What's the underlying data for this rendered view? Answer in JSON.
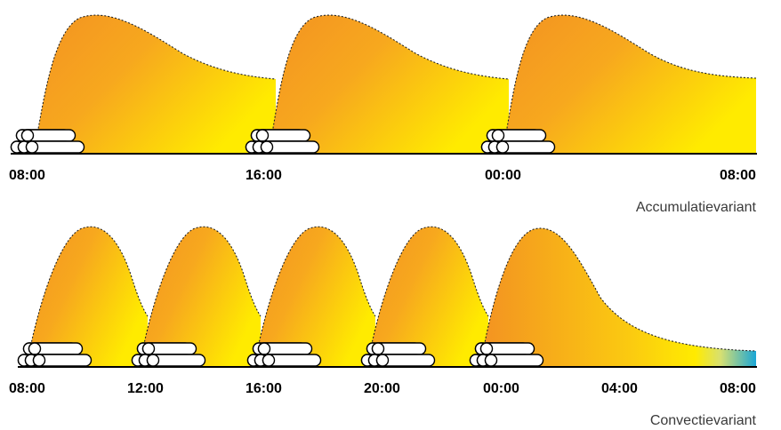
{
  "panels": [
    {
      "id": "accumulatie",
      "caption": "Accumulatievariant",
      "tick_labels": [
        "08:00",
        "16:00",
        "00:00",
        "08:00"
      ],
      "burns": 3,
      "colors": {
        "warm": "#F39222",
        "mid": "#F7B21C",
        "light": "#FFEB00"
      }
    },
    {
      "id": "convectie",
      "caption": "Convectievariant",
      "tick_labels": [
        "08:00",
        "12:00",
        "16:00",
        "20:00",
        "00:00",
        "04:00",
        "08:00"
      ],
      "burns": 5,
      "colors": {
        "warm": "#F39222",
        "mid": "#F7B21C",
        "light": "#FFEB00",
        "cool": "#1AA6D6"
      }
    }
  ],
  "icons": {
    "wood": "firewood-logs-icon"
  }
}
